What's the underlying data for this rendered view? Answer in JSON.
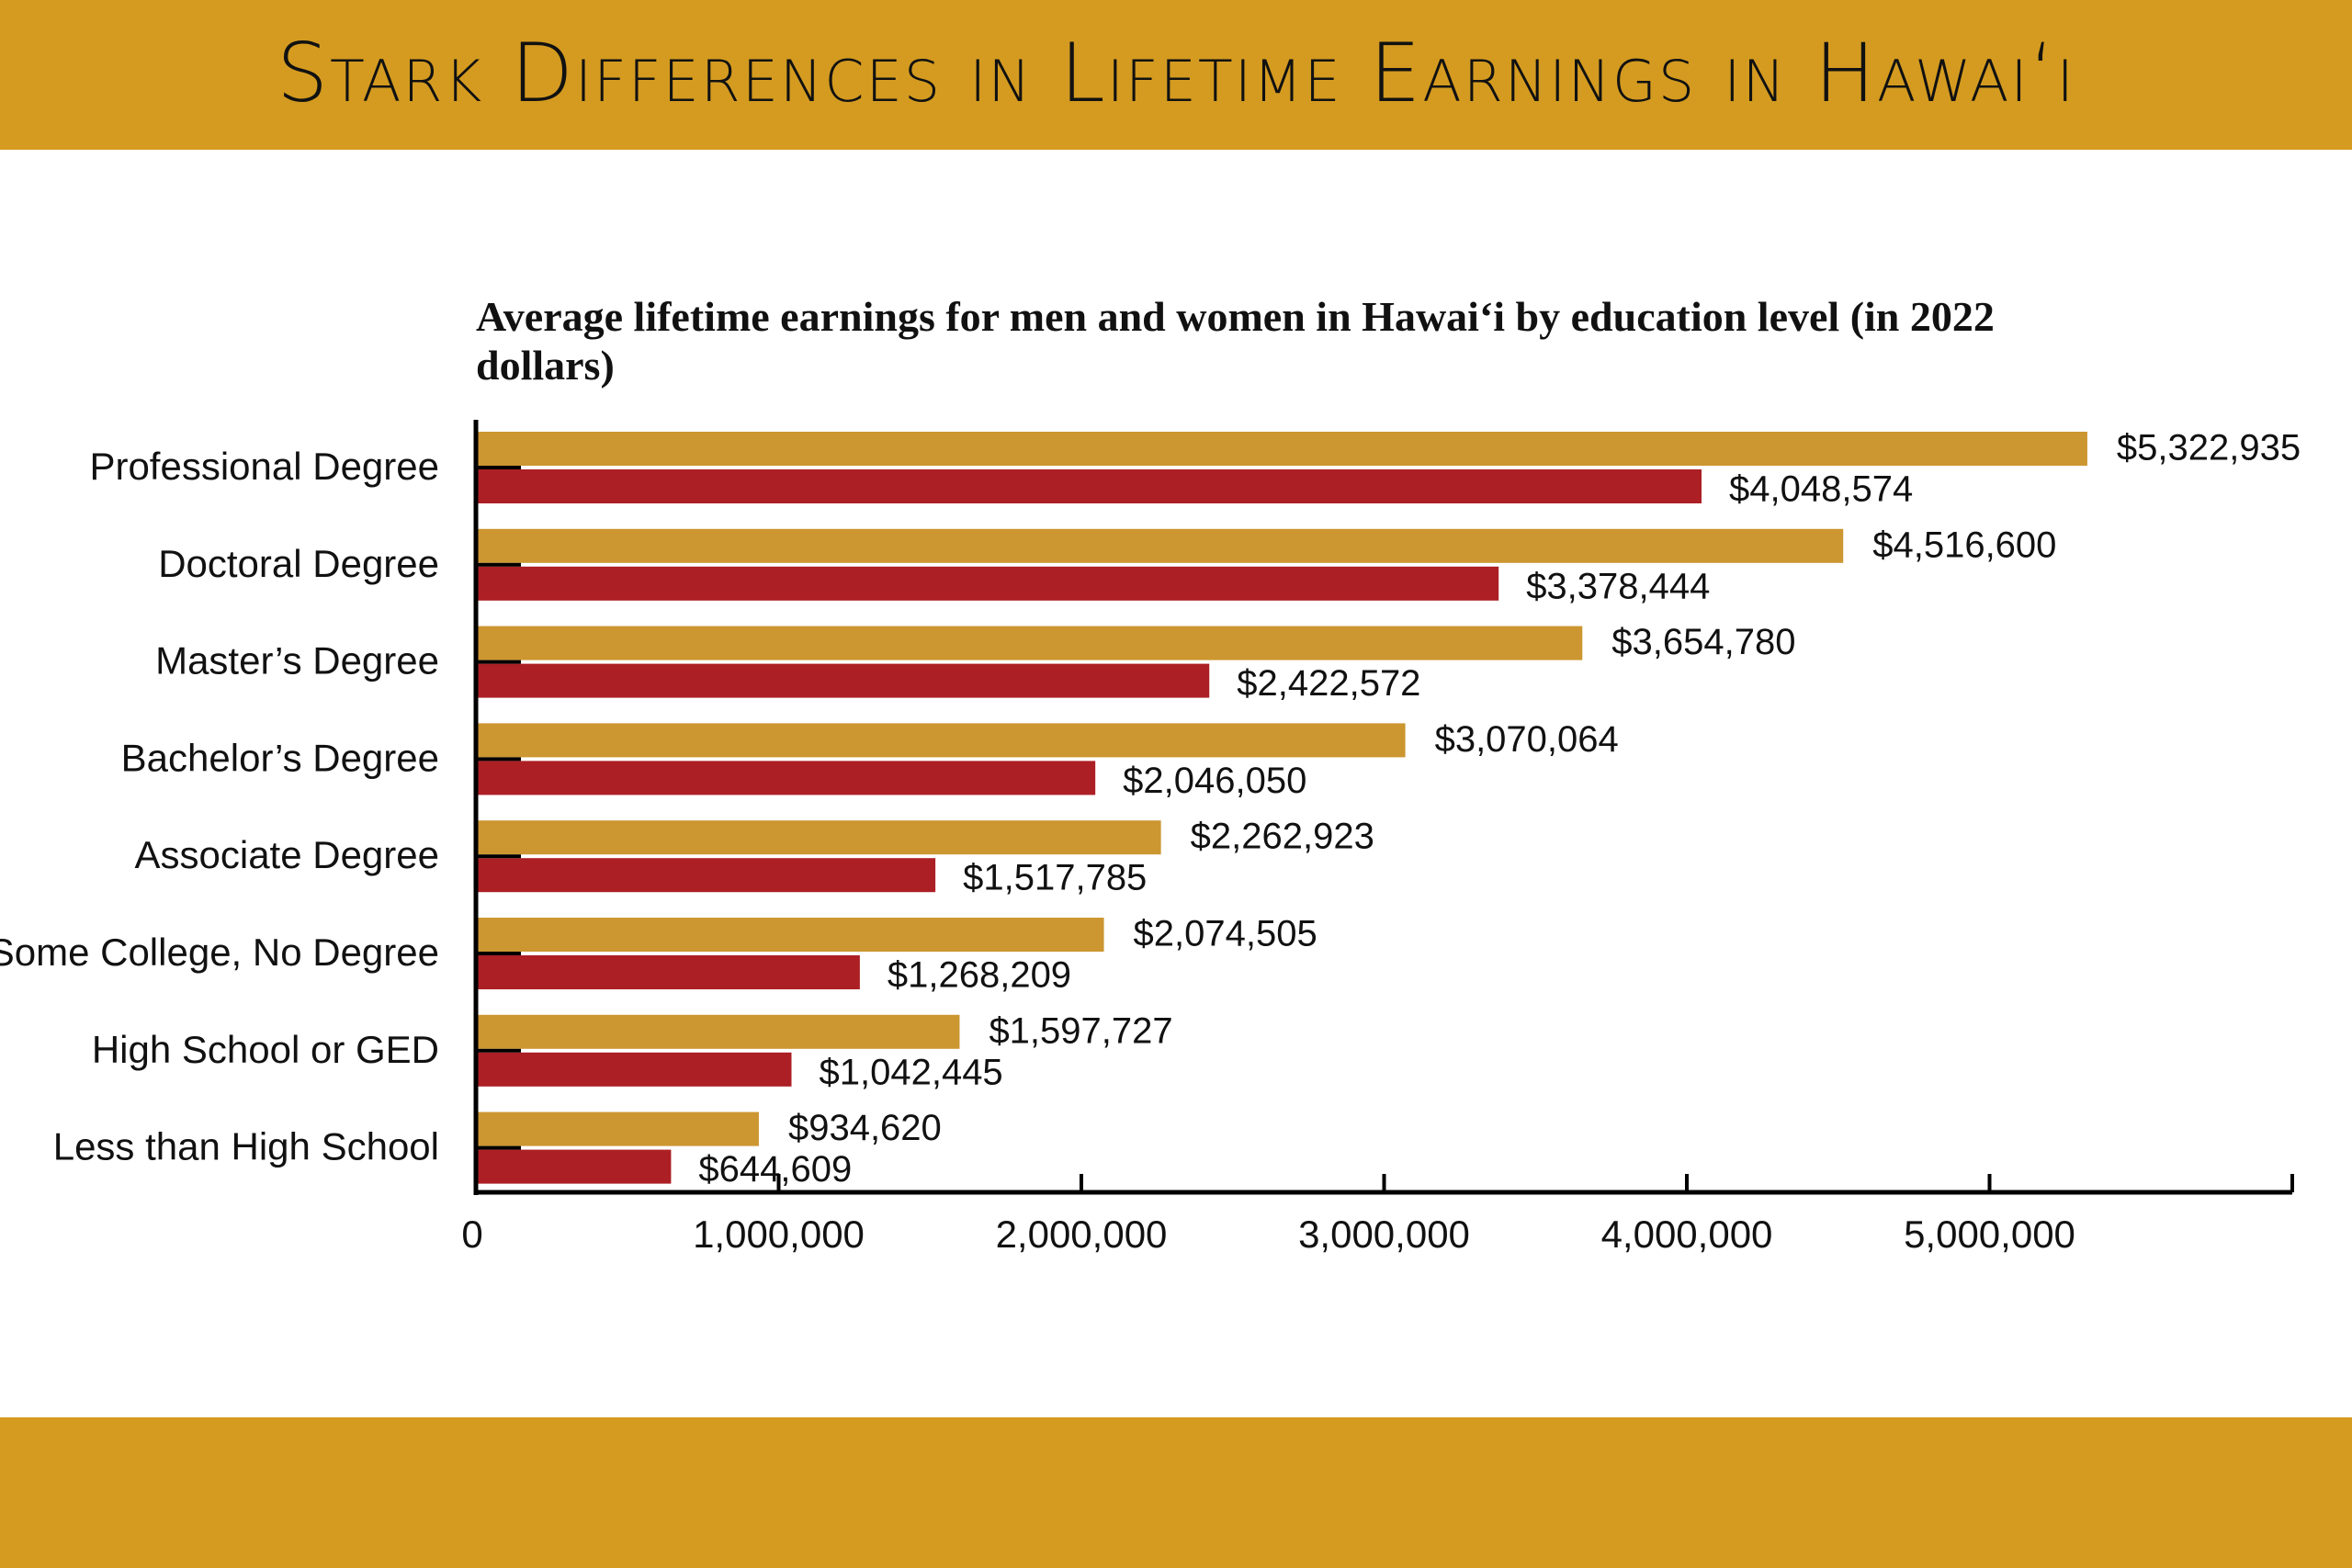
{
  "title": "Stark Differences in Lifetime Earnings in Hawai‘i",
  "chart_data": {
    "type": "bar",
    "orientation": "horizontal",
    "title": "Average lifetime earnings for men and women in Hawai‘i by education level (in 2022 dollars)",
    "xlabel": "",
    "ylabel": "",
    "xlim": [
      0,
      6000000
    ],
    "x_ticks": [
      0,
      1000000,
      2000000,
      3000000,
      4000000,
      5000000
    ],
    "x_tick_labels": [
      "0",
      "1,000,000",
      "2,000,000",
      "3,000,000",
      "4,000,000",
      "5,000,000"
    ],
    "grid": false,
    "legend": "none",
    "categories": [
      "Professional Degree",
      "Doctoral Degree",
      "Master’s Degree",
      "Bachelor’s Degree",
      "Associate Degree",
      "Some College, No Degree",
      "High School or GED",
      "Less than High School"
    ],
    "series": [
      {
        "color": "#CC9630",
        "values": [
          5322935,
          4516600,
          3654780,
          3070064,
          2262923,
          2074505,
          1597727,
          934620
        ],
        "labels": [
          "$5,322,935",
          "$4,516,600",
          "$3,654,780",
          "$3,070,064",
          "$2,262,923",
          "$2,074,505",
          "$1,597,727",
          "$934,620"
        ]
      },
      {
        "color": "#AC1F24",
        "values": [
          4048574,
          3378444,
          2422572,
          2046050,
          1517785,
          1268209,
          1042445,
          644609
        ],
        "labels": [
          "$4,048,574",
          "$3,378,444",
          "$2,422,572",
          "$2,046,050",
          "$1,517,785",
          "$1,268,209",
          "$1,042,445",
          "$644,609"
        ]
      }
    ]
  },
  "colors": {
    "banner": "#D49B20"
  }
}
